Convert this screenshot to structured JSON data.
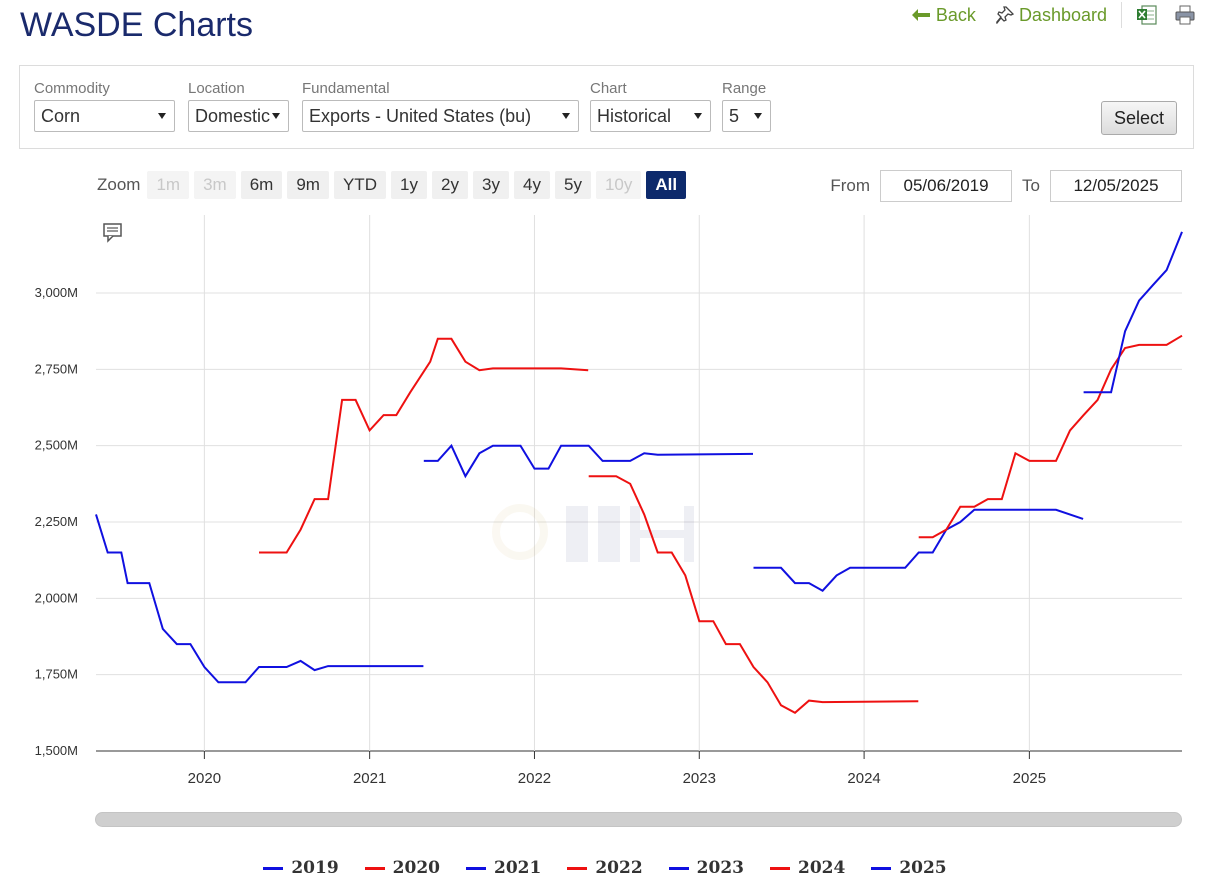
{
  "header": {
    "title": "WASDE Charts"
  },
  "links": {
    "back": "Back",
    "dashboard": "Dashboard"
  },
  "filters": {
    "commodity": {
      "label": "Commodity",
      "value": "Corn"
    },
    "location": {
      "label": "Location",
      "value": "Domestic"
    },
    "fundamental": {
      "label": "Fundamental",
      "value": "Exports - United States (bu)"
    },
    "chart": {
      "label": "Chart",
      "value": "Historical"
    },
    "range": {
      "label": "Range",
      "value": "5"
    },
    "select_label": "Select"
  },
  "zoom": {
    "label": "Zoom",
    "buttons": [
      {
        "label": "1m",
        "state": "disabled"
      },
      {
        "label": "3m",
        "state": "disabled"
      },
      {
        "label": "6m",
        "state": "normal"
      },
      {
        "label": "9m",
        "state": "normal"
      },
      {
        "label": "YTD",
        "state": "normal"
      },
      {
        "label": "1y",
        "state": "normal"
      },
      {
        "label": "2y",
        "state": "normal"
      },
      {
        "label": "3y",
        "state": "normal"
      },
      {
        "label": "4y",
        "state": "normal"
      },
      {
        "label": "5y",
        "state": "normal"
      },
      {
        "label": "10y",
        "state": "disabled"
      },
      {
        "label": "All",
        "state": "active"
      }
    ]
  },
  "range_inputs": {
    "from_label": "From",
    "from_value": "05/06/2019",
    "to_label": "To",
    "to_value": "12/05/2025"
  },
  "colors": {
    "blue": "#1010e0",
    "red": "#ee1111",
    "title": "#1a2a6c",
    "link": "#6a9a2a"
  },
  "chart_data": {
    "type": "line",
    "title": "",
    "xlabel": "",
    "ylabel": "",
    "x_ticks": [
      "2020",
      "2021",
      "2022",
      "2023",
      "2024",
      "2025"
    ],
    "y_ticks": [
      "1,500M",
      "1,750M",
      "2,000M",
      "2,250M",
      "2,500M",
      "2,750M",
      "3,000M"
    ],
    "ylim": [
      1500,
      3200
    ],
    "xlim": [
      "2019-05-06",
      "2025-12-05"
    ],
    "grid": true,
    "legend_position": "bottom",
    "series": [
      {
        "name": "2019",
        "color": "#1010e0",
        "points": [
          [
            "2019-05-06",
            2275
          ],
          [
            "2019-06-01",
            2150
          ],
          [
            "2019-07-01",
            2150
          ],
          [
            "2019-07-15",
            2050
          ],
          [
            "2019-09-01",
            2050
          ],
          [
            "2019-10-01",
            1900
          ],
          [
            "2019-11-01",
            1850
          ],
          [
            "2019-12-01",
            1850
          ],
          [
            "2020-01-01",
            1775
          ],
          [
            "2020-02-01",
            1725
          ],
          [
            "2020-04-01",
            1725
          ],
          [
            "2020-05-01",
            1775
          ],
          [
            "2020-07-01",
            1775
          ],
          [
            "2020-08-01",
            1795
          ],
          [
            "2020-09-01",
            1765
          ],
          [
            "2020-10-01",
            1778
          ],
          [
            "2021-04-30",
            1778
          ]
        ]
      },
      {
        "name": "2020",
        "color": "#ee1111",
        "points": [
          [
            "2020-05-01",
            2150
          ],
          [
            "2020-07-01",
            2150
          ],
          [
            "2020-08-01",
            2225
          ],
          [
            "2020-09-01",
            2325
          ],
          [
            "2020-10-01",
            2325
          ],
          [
            "2020-11-01",
            2650
          ],
          [
            "2020-12-01",
            2650
          ],
          [
            "2021-01-01",
            2550
          ],
          [
            "2021-02-01",
            2600
          ],
          [
            "2021-03-01",
            2600
          ],
          [
            "2021-04-01",
            2675
          ],
          [
            "2021-05-15",
            2775
          ],
          [
            "2021-06-01",
            2850
          ],
          [
            "2021-07-01",
            2850
          ],
          [
            "2021-08-01",
            2775
          ],
          [
            "2021-09-01",
            2747
          ],
          [
            "2021-10-01",
            2753
          ],
          [
            "2022-03-01",
            2753
          ],
          [
            "2022-04-30",
            2747
          ]
        ]
      },
      {
        "name": "2021",
        "color": "#1010e0",
        "points": [
          [
            "2021-05-01",
            2450
          ],
          [
            "2021-06-01",
            2450
          ],
          [
            "2021-07-01",
            2500
          ],
          [
            "2021-08-01",
            2400
          ],
          [
            "2021-09-01",
            2475
          ],
          [
            "2021-10-01",
            2500
          ],
          [
            "2021-12-01",
            2500
          ],
          [
            "2022-01-01",
            2425
          ],
          [
            "2022-02-01",
            2425
          ],
          [
            "2022-03-01",
            2500
          ],
          [
            "2022-05-01",
            2500
          ],
          [
            "2022-06-01",
            2450
          ],
          [
            "2022-08-01",
            2450
          ],
          [
            "2022-09-01",
            2475
          ],
          [
            "2022-10-01",
            2470
          ],
          [
            "2023-04-30",
            2473
          ]
        ]
      },
      {
        "name": "2022",
        "color": "#ee1111",
        "points": [
          [
            "2022-05-01",
            2400
          ],
          [
            "2022-07-01",
            2400
          ],
          [
            "2022-08-01",
            2375
          ],
          [
            "2022-09-01",
            2275
          ],
          [
            "2022-10-01",
            2150
          ],
          [
            "2022-11-01",
            2150
          ],
          [
            "2022-12-01",
            2075
          ],
          [
            "2023-01-01",
            1925
          ],
          [
            "2023-02-01",
            1925
          ],
          [
            "2023-03-01",
            1850
          ],
          [
            "2023-04-01",
            1850
          ],
          [
            "2023-05-01",
            1775
          ],
          [
            "2023-06-01",
            1725
          ],
          [
            "2023-07-01",
            1650
          ],
          [
            "2023-08-01",
            1625
          ],
          [
            "2023-09-01",
            1665
          ],
          [
            "2023-10-01",
            1660
          ],
          [
            "2024-04-30",
            1663
          ]
        ]
      },
      {
        "name": "2023",
        "color": "#1010e0",
        "points": [
          [
            "2023-05-01",
            2100
          ],
          [
            "2023-07-01",
            2100
          ],
          [
            "2023-08-01",
            2050
          ],
          [
            "2023-09-01",
            2050
          ],
          [
            "2023-10-01",
            2025
          ],
          [
            "2023-11-01",
            2075
          ],
          [
            "2023-12-01",
            2100
          ],
          [
            "2024-04-01",
            2100
          ],
          [
            "2024-05-01",
            2150
          ],
          [
            "2024-06-01",
            2150
          ],
          [
            "2024-07-01",
            2225
          ],
          [
            "2024-08-01",
            2250
          ],
          [
            "2024-09-01",
            2290
          ],
          [
            "2024-10-01",
            2290
          ],
          [
            "2025-03-01",
            2290
          ],
          [
            "2025-04-30",
            2260
          ]
        ]
      },
      {
        "name": "2024",
        "color": "#ee1111",
        "points": [
          [
            "2024-05-01",
            2200
          ],
          [
            "2024-06-01",
            2200
          ],
          [
            "2024-07-01",
            2225
          ],
          [
            "2024-08-01",
            2300
          ],
          [
            "2024-09-01",
            2300
          ],
          [
            "2024-10-01",
            2325
          ],
          [
            "2024-11-01",
            2325
          ],
          [
            "2024-12-01",
            2475
          ],
          [
            "2025-01-01",
            2450
          ],
          [
            "2025-03-01",
            2450
          ],
          [
            "2025-04-01",
            2550
          ],
          [
            "2025-05-01",
            2600
          ],
          [
            "2025-06-01",
            2650
          ],
          [
            "2025-07-01",
            2750
          ],
          [
            "2025-08-01",
            2820
          ],
          [
            "2025-09-01",
            2830
          ],
          [
            "2025-11-01",
            2830
          ],
          [
            "2025-12-05",
            2860
          ]
        ]
      },
      {
        "name": "2025",
        "color": "#1010e0",
        "points": [
          [
            "2025-05-01",
            2675
          ],
          [
            "2025-07-01",
            2675
          ],
          [
            "2025-08-01",
            2875
          ],
          [
            "2025-09-01",
            2975
          ],
          [
            "2025-10-01",
            3025
          ],
          [
            "2025-11-01",
            3075
          ],
          [
            "2025-12-05",
            3200
          ]
        ]
      }
    ]
  }
}
